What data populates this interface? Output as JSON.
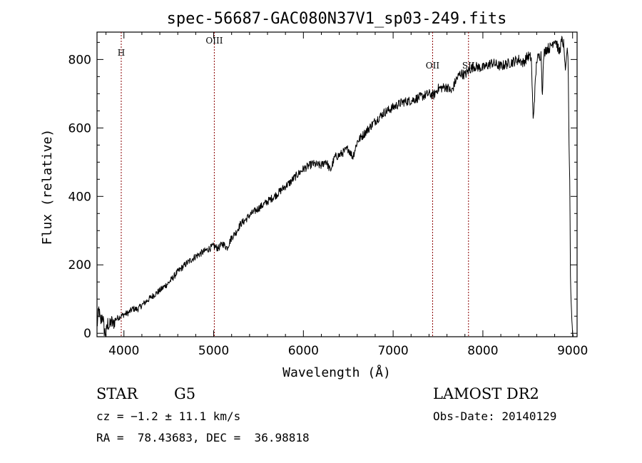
{
  "chart_data": {
    "type": "line",
    "title": "spec-56687-GAC080N37V1_sp03-249.fits",
    "xlabel": "Wavelength (Å)",
    "ylabel": "Flux (relative)",
    "xlim": [
      3700,
      9050
    ],
    "ylim": [
      -10,
      880
    ],
    "x_ticks": [
      4000,
      5000,
      6000,
      7000,
      8000,
      9000
    ],
    "y_ticks": [
      0,
      200,
      400,
      600,
      800
    ],
    "grid": false,
    "series": [
      {
        "x": [
          3700,
          3720,
          3740,
          3760,
          3780,
          3800,
          3820,
          3840,
          3860,
          3880,
          3900,
          3950,
          4000,
          4050,
          4100,
          4150,
          4200,
          4300,
          4400,
          4500,
          4600,
          4700,
          4800,
          4900,
          5000,
          5050,
          5100,
          5150,
          5200,
          5250,
          5300,
          5350,
          5400,
          5500,
          5600,
          5700,
          5800,
          5850,
          5900,
          6000,
          6100,
          6200,
          6250,
          6300,
          6350,
          6400,
          6450,
          6500,
          6550,
          6600,
          6700,
          6800,
          6900,
          7000,
          7100,
          7200,
          7300,
          7400,
          7450,
          7500,
          7600,
          7650,
          7700,
          7750,
          7800,
          7850,
          7900,
          8000,
          8100,
          8200,
          8300,
          8400,
          8450,
          8500,
          8540,
          8560,
          8600,
          8650,
          8662,
          8680,
          8700,
          8750,
          8800,
          8820,
          8850,
          8880,
          8900,
          8920,
          8940,
          8950,
          8960,
          8970,
          8975,
          8980,
          8990,
          9000,
          9010
        ],
        "y": [
          20,
          70,
          30,
          55,
          10,
          -5,
          30,
          20,
          35,
          25,
          40,
          48,
          55,
          60,
          72,
          70,
          82,
          105,
          125,
          148,
          180,
          205,
          225,
          240,
          255,
          248,
          262,
          250,
          280,
          295,
          320,
          330,
          345,
          365,
          385,
          405,
          430,
          440,
          455,
          480,
          495,
          490,
          505,
          475,
          515,
          520,
          530,
          540,
          515,
          560,
          590,
          620,
          645,
          660,
          675,
          680,
          690,
          700,
          695,
          715,
          720,
          705,
          740,
          760,
          755,
          770,
          780,
          775,
          790,
          780,
          790,
          800,
          790,
          810,
          805,
          620,
          800,
          815,
          700,
          815,
          830,
          835,
          860,
          850,
          820,
          855,
          845,
          770,
          830,
          800,
          550,
          420,
          180,
          120,
          50,
          0,
          -10
        ]
      }
    ],
    "line_markers": [
      {
        "label": "H",
        "x": 3970
      },
      {
        "label": "OIII",
        "x": 5007
      },
      {
        "label": "OII",
        "x": 7440
      },
      {
        "label": "SII",
        "x": 7840
      }
    ],
    "annotations": {
      "object_type": "STAR",
      "subclass": "G5",
      "survey": "LAMOST DR2",
      "cz": "cz = −1.2 ± 11.1 km/s",
      "obs_date": "Obs-Date: 20140129",
      "coords": "RA =  78.43683, DEC =  36.98818"
    }
  }
}
